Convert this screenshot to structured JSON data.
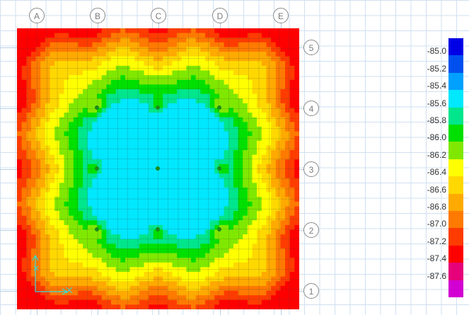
{
  "grid": {
    "columns": [
      "A",
      "B",
      "C",
      "D",
      "E"
    ],
    "rows": [
      "5",
      "4",
      "3",
      "2",
      "1"
    ]
  },
  "legend": {
    "labels": [
      "-85.0",
      "-85.2",
      "-85.4",
      "-85.6",
      "-85.8",
      "-86.0",
      "-86.2",
      "-86.4",
      "-86.6",
      "-86.8",
      "-87.0",
      "-87.2",
      "-87.4",
      "-87.6"
    ],
    "colors": [
      "#0000e6",
      "#0050f0",
      "#00a0ff",
      "#00e8ff",
      "#00e68c",
      "#00e000",
      "#80e800",
      "#ffff00",
      "#ffd800",
      "#ffaa00",
      "#ff7a00",
      "#ff3c00",
      "#ff0000",
      "#e6007a",
      "#d200d2"
    ]
  },
  "contour": {
    "band_colors": [
      "#00e8ff",
      "#00e68c",
      "#00e000",
      "#80e800",
      "#ffff00",
      "#ffd800",
      "#ffaa00",
      "#ff7a00",
      "#ff3c00",
      "#ff0000"
    ]
  },
  "icons": {
    "axis": "axis-triad-icon",
    "support": "column-support-icon"
  }
}
